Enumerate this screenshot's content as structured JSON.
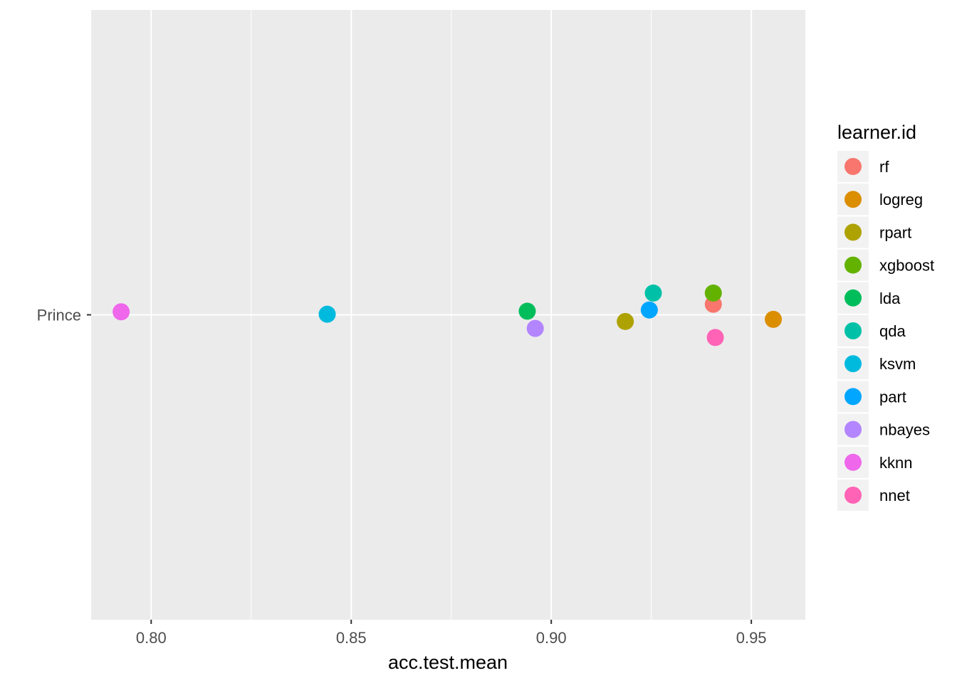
{
  "chart_data": {
    "type": "scatter",
    "title": "",
    "xlabel": "acc.test.mean",
    "ylabel": "",
    "xlim": [
      0.785,
      0.9635
    ],
    "x_ticks": [
      "0.80",
      "0.85",
      "0.90",
      "0.95"
    ],
    "x_tick_values": [
      0.8,
      0.85,
      0.9,
      0.95
    ],
    "y_categories": [
      "Prince"
    ],
    "grid": true,
    "background": "#ebebeb",
    "legend": {
      "title": "learner.id",
      "placement": "right"
    },
    "series": [
      {
        "name": "rf",
        "color": "#F8766D",
        "x": 0.9405,
        "jitter": 0.035
      },
      {
        "name": "logreg",
        "color": "#DB8E00",
        "x": 0.9555,
        "jitter": -0.015
      },
      {
        "name": "rpart",
        "color": "#AEA200",
        "x": 0.9185,
        "jitter": -0.022
      },
      {
        "name": "xgboost",
        "color": "#64B200",
        "x": 0.9405,
        "jitter": 0.072
      },
      {
        "name": "lda",
        "color": "#00BD5C",
        "x": 0.894,
        "jitter": 0.012
      },
      {
        "name": "qda",
        "color": "#00C1A7",
        "x": 0.9255,
        "jitter": 0.072
      },
      {
        "name": "ksvm",
        "color": "#00BADE",
        "x": 0.844,
        "jitter": 0.002
      },
      {
        "name": "part",
        "color": "#00A6FF",
        "x": 0.9245,
        "jitter": 0.016
      },
      {
        "name": "nbayes",
        "color": "#B385FF",
        "x": 0.896,
        "jitter": -0.045
      },
      {
        "name": "kknn",
        "color": "#EF67EB",
        "x": 0.7925,
        "jitter": 0.01
      },
      {
        "name": "nnet",
        "color": "#FF63B6",
        "x": 0.941,
        "jitter": -0.075
      }
    ]
  }
}
